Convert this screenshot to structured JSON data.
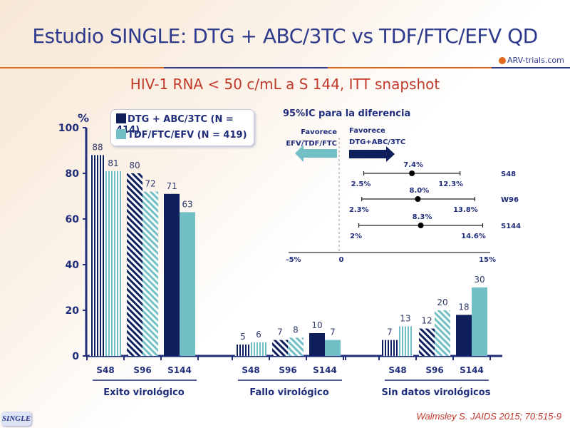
{
  "header": {
    "title": "Estudio SINGLE: DTG + ABC/3TC vs TDF/FTC/EFV QD",
    "subtitle": "HIV-1 RNA < 50 c/mL a S 144, ITT snapshot",
    "logo_text": "ARV-trials.com"
  },
  "footer": {
    "badge": "SINGLE",
    "citation": "Walmsley S. JAIDS 2015; 70:515-9"
  },
  "colors": {
    "dtg": "#0f1f5c",
    "tdf": "#72c0c6",
    "text": "#1f2d7a",
    "title": "#2e3a8c",
    "subtitle": "#c0392b"
  },
  "chart_data": [
    {
      "type": "bar",
      "title": "",
      "ylabel": "%",
      "ylim": [
        0,
        100
      ],
      "yticks": [
        "0",
        "20",
        "40",
        "60",
        "80",
        "100"
      ],
      "legend": {
        "placement": "top-left",
        "entries": [
          "DTG + ABC/3TC (N = 414)",
          "TDF/FTC/EFV (N = 419)"
        ]
      },
      "groups": [
        {
          "label": "Exito virológico",
          "categories": [
            "S48",
            "S96",
            "S144"
          ],
          "series": [
            {
              "name": "DTG + ABC/3TC (N = 414)",
              "values": [
                88,
                80,
                71
              ]
            },
            {
              "name": "TDF/FTC/EFV (N = 419)",
              "values": [
                81,
                72,
                63
              ]
            }
          ]
        },
        {
          "label": "Fallo virológico",
          "categories": [
            "S48",
            "S96",
            "S144"
          ],
          "series": [
            {
              "name": "DTG + ABC/3TC (N = 414)",
              "values": [
                5,
                7,
                10
              ]
            },
            {
              "name": "TDF/FTC/EFV (N = 419)",
              "values": [
                6,
                8,
                7
              ]
            }
          ]
        },
        {
          "label": "Sin datos virológicos",
          "categories": [
            "S48",
            "S96",
            "S144"
          ],
          "series": [
            {
              "name": "DTG + ABC/3TC (N = 414)",
              "values": [
                7,
                12,
                18
              ]
            },
            {
              "name": "TDF/FTC/EFV (N = 419)",
              "values": [
                13,
                20,
                30
              ]
            }
          ]
        }
      ],
      "patterns": {
        "S48": "vertical",
        "S96": "diagonal",
        "S144": "solid"
      }
    },
    {
      "type": "forest",
      "title": "95%IC para la diferencia",
      "xlim": [
        -5,
        15
      ],
      "xticks": [
        "-5%",
        "0",
        "15%"
      ],
      "left_label": "Favorece EFV/TDF/FTC",
      "right_label": "Favorece DTG+ABC/3TC",
      "left_label_lines": [
        "Favorece",
        "EFV/TDF/FTC"
      ],
      "right_label_lines": [
        "Favorece",
        "DTG+ABC/3TC"
      ],
      "rows": [
        {
          "label": "S48",
          "estimate": 7.4,
          "low": 2.5,
          "high": 12.3,
          "est_text": "7.4%",
          "low_text": "2.5%",
          "high_text": "12.3%"
        },
        {
          "label": "W96",
          "estimate": 8.0,
          "low": 2.3,
          "high": 13.8,
          "est_text": "8.0%",
          "low_text": "2.3%",
          "high_text": "13.8%"
        },
        {
          "label": "S144",
          "estimate": 8.3,
          "low": 2.0,
          "high": 14.6,
          "est_text": "8.3%",
          "low_text": "2%",
          "high_text": "14.6%"
        }
      ]
    }
  ]
}
